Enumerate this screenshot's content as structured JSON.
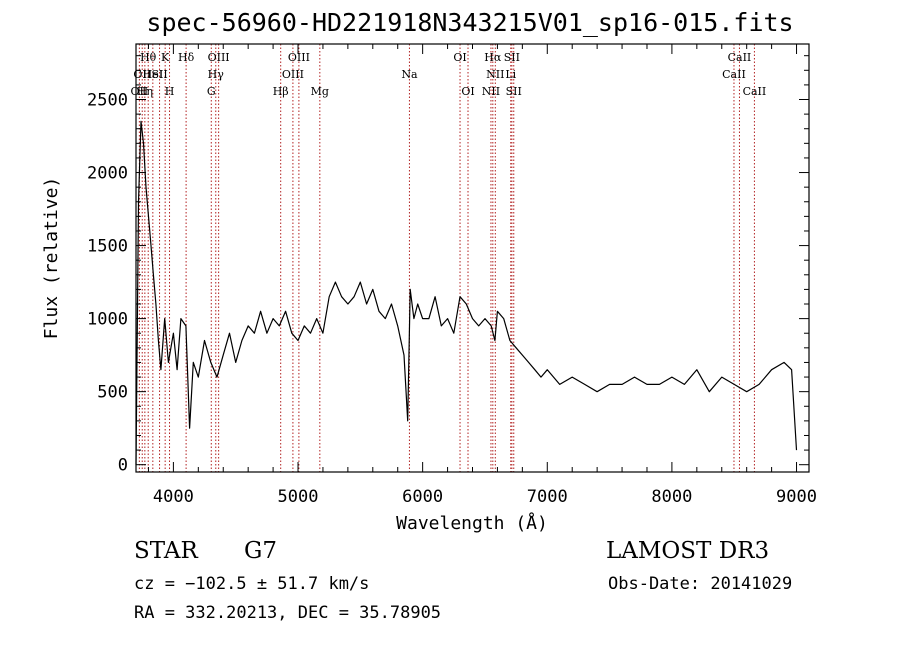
{
  "chart_data": {
    "type": "line",
    "title": "spec-56960-HD221918N343215V01_sp16-015.fits",
    "xlabel": "Wavelength (Å)",
    "ylabel": "Flux (relative)",
    "xlim": [
      3700,
      9100
    ],
    "ylim": [
      -50,
      2880
    ],
    "x_ticks": [
      4000,
      5000,
      6000,
      7000,
      8000,
      9000
    ],
    "y_ticks": [
      0,
      500,
      1000,
      1500,
      2000,
      2500
    ],
    "grid": false,
    "series_color": "#000000",
    "line_marker_color": "#b22222",
    "series": [
      {
        "x": [
          3700,
          3720,
          3740,
          3760,
          3780,
          3800,
          3820,
          3840,
          3860,
          3880,
          3900,
          3930,
          3960,
          4000,
          4030,
          4060,
          4100,
          4130,
          4160,
          4200,
          4250,
          4300,
          4350,
          4400,
          4450,
          4500,
          4550,
          4600,
          4650,
          4700,
          4750,
          4800,
          4850,
          4900,
          4950,
          5000,
          5050,
          5100,
          5150,
          5200,
          5250,
          5300,
          5350,
          5400,
          5450,
          5500,
          5550,
          5600,
          5650,
          5700,
          5750,
          5800,
          5850,
          5880,
          5900,
          5930,
          5960,
          6000,
          6050,
          6100,
          6150,
          6200,
          6250,
          6300,
          6350,
          6400,
          6450,
          6500,
          6550,
          6580,
          6600,
          6650,
          6700,
          6750,
          6800,
          6850,
          6900,
          6950,
          7000,
          7100,
          7200,
          7300,
          7400,
          7500,
          7600,
          7700,
          7800,
          7900,
          8000,
          8100,
          8200,
          8300,
          8400,
          8500,
          8600,
          8700,
          8800,
          8900,
          8960,
          9000
        ],
        "y": [
          0,
          1800,
          2350,
          2200,
          1900,
          1700,
          1500,
          1300,
          1100,
          850,
          650,
          1000,
          700,
          900,
          650,
          1000,
          950,
          250,
          700,
          600,
          850,
          700,
          600,
          750,
          900,
          700,
          850,
          950,
          900,
          1050,
          900,
          1000,
          950,
          1050,
          900,
          850,
          950,
          900,
          1000,
          900,
          1150,
          1250,
          1150,
          1100,
          1150,
          1250,
          1100,
          1200,
          1050,
          1000,
          1100,
          950,
          750,
          300,
          1200,
          1000,
          1100,
          1000,
          1000,
          1150,
          950,
          1000,
          900,
          1150,
          1100,
          1000,
          950,
          1000,
          950,
          850,
          1050,
          1000,
          850,
          800,
          750,
          700,
          650,
          600,
          650,
          550,
          600,
          550,
          500,
          550,
          550,
          600,
          550,
          550,
          600,
          550,
          650,
          500,
          600,
          550,
          500,
          550,
          650,
          700,
          650,
          100
        ]
      }
    ],
    "lines": [
      {
        "w": 3727,
        "labels": [
          {
            "t": "OII",
            "row": 3
          }
        ]
      },
      {
        "w": 3750,
        "labels": [
          {
            "t": "OII",
            "row": 2
          }
        ]
      },
      {
        "w": 3771,
        "labels": [
          {
            "t": "Hη",
            "row": 3
          }
        ]
      },
      {
        "w": 3798,
        "labels": [
          {
            "t": "Hθ",
            "row": 1
          }
        ]
      },
      {
        "w": 3835,
        "labels": [
          {
            "t": "HeI",
            "row": 2
          }
        ]
      },
      {
        "w": 3889,
        "labels": [
          {
            "t": "SII",
            "row": 2
          }
        ]
      },
      {
        "w": 3934,
        "labels": [
          {
            "t": "K",
            "row": 1
          }
        ]
      },
      {
        "w": 3969,
        "labels": [
          {
            "t": "H",
            "row": 3
          }
        ]
      },
      {
        "w": 4102,
        "labels": [
          {
            "t": "Hδ",
            "row": 1
          }
        ]
      },
      {
        "w": 4304,
        "labels": [
          {
            "t": "G",
            "row": 3
          }
        ]
      },
      {
        "w": 4340,
        "labels": [
          {
            "t": "Hγ",
            "row": 2
          }
        ]
      },
      {
        "w": 4363,
        "labels": [
          {
            "t": "OIII",
            "row": 1
          }
        ]
      },
      {
        "w": 4861,
        "labels": [
          {
            "t": "Hβ",
            "row": 3
          }
        ]
      },
      {
        "w": 4959,
        "labels": [
          {
            "t": "OIII",
            "row": 2
          }
        ]
      },
      {
        "w": 5007,
        "labels": [
          {
            "t": "OIII",
            "row": 1
          }
        ]
      },
      {
        "w": 5175,
        "labels": [
          {
            "t": "Mg",
            "row": 3
          }
        ]
      },
      {
        "w": 5894,
        "labels": [
          {
            "t": "Na",
            "row": 2
          }
        ]
      },
      {
        "w": 6300,
        "labels": [
          {
            "t": "OI",
            "row": 1
          }
        ]
      },
      {
        "w": 6364,
        "labels": [
          {
            "t": "OI",
            "row": 3
          }
        ]
      },
      {
        "w": 6548,
        "labels": [
          {
            "t": "NII",
            "row": 3
          }
        ]
      },
      {
        "w": 6563,
        "labels": [
          {
            "t": "Hα",
            "row": 1
          }
        ]
      },
      {
        "w": 6583,
        "labels": [
          {
            "t": "NII",
            "row": 2
          }
        ]
      },
      {
        "w": 6707,
        "labels": [
          {
            "t": "Li",
            "row": 2
          }
        ]
      },
      {
        "w": 6716,
        "labels": [
          {
            "t": "SII",
            "row": 1
          }
        ]
      },
      {
        "w": 6731,
        "labels": [
          {
            "t": "SII",
            "row": 3
          }
        ]
      },
      {
        "w": 8498,
        "labels": [
          {
            "t": "CaII",
            "row": 2
          }
        ]
      },
      {
        "w": 8542,
        "labels": [
          {
            "t": "CaII",
            "row": 1
          }
        ]
      },
      {
        "w": 8662,
        "labels": [
          {
            "t": "CaII",
            "row": 3
          }
        ]
      }
    ]
  },
  "info": {
    "class": "STAR",
    "subclass": "G7",
    "survey": "LAMOST DR3",
    "redshift": "cz = −102.5 ± 51.7 km/s",
    "obs_date": "Obs-Date: 20141029",
    "radec": "RA = 332.20213, DEC =  35.78905"
  }
}
